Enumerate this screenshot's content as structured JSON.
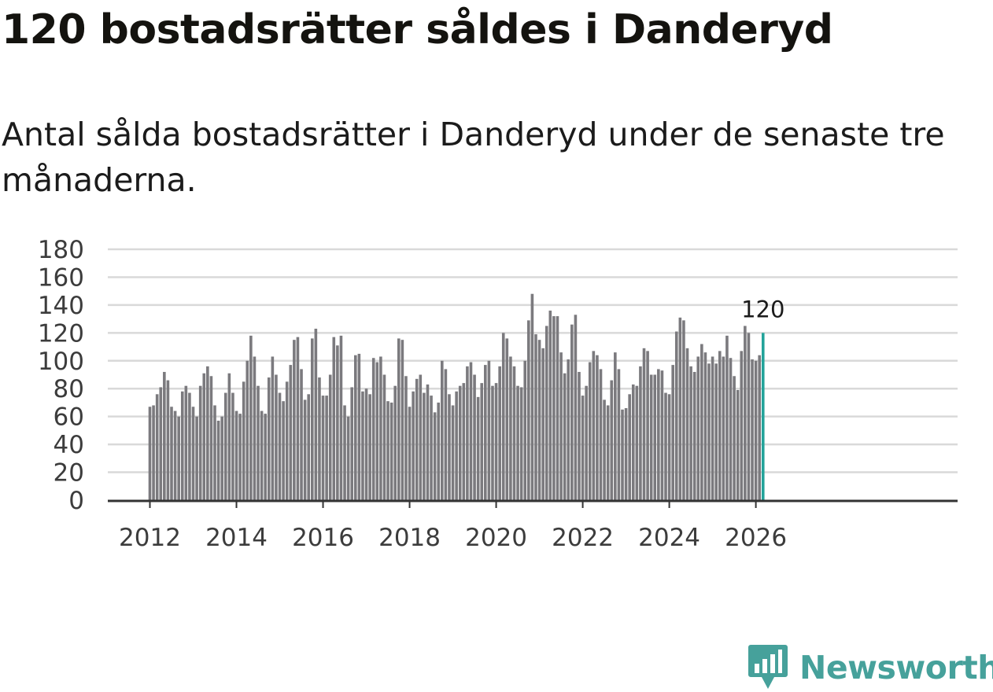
{
  "title": "120 bostadsrätter såldes i Danderyd",
  "subtitle": "Antal sålda bostadsrätter i Danderyd under de senaste tre månaderna.",
  "brand": {
    "name": "Newsworthy",
    "color": "#46a19b",
    "icon": "newsworthy-logo-icon"
  },
  "colors": {
    "bar": "#7b7a7e",
    "highlight": "#23a39a",
    "grid": "#d9d9d9",
    "axis": "#333333"
  },
  "chart_data": {
    "type": "bar",
    "title": "120 bostadsrätter såldes i Danderyd",
    "xlabel": "",
    "ylabel": "",
    "x_start": "2012-01",
    "frequency": "monthly",
    "ylim": [
      0,
      180
    ],
    "yticks": [
      "0",
      "20",
      "40",
      "60",
      "80",
      "100",
      "120",
      "140",
      "160",
      "180"
    ],
    "xticks": [
      {
        "label": "2012",
        "month_index": 0
      },
      {
        "label": "2014",
        "month_index": 24
      },
      {
        "label": "2016",
        "month_index": 48
      },
      {
        "label": "2018",
        "month_index": 72
      },
      {
        "label": "2020",
        "month_index": 96
      },
      {
        "label": "2022",
        "month_index": 120
      },
      {
        "label": "2024",
        "month_index": 144
      },
      {
        "label": "2026",
        "month_index": 168
      }
    ],
    "grid": true,
    "highlight_last": true,
    "last_label": "120",
    "series": [
      {
        "name": "Antal sålda bostadsrätter (3 mån)",
        "values": [
          67,
          68,
          76,
          81,
          92,
          86,
          67,
          64,
          60,
          78,
          82,
          77,
          67,
          60,
          82,
          91,
          96,
          89,
          68,
          57,
          60,
          77,
          91,
          77,
          64,
          62,
          85,
          100,
          118,
          103,
          82,
          64,
          62,
          88,
          103,
          90,
          77,
          71,
          85,
          97,
          115,
          117,
          94,
          72,
          76,
          116,
          123,
          88,
          75,
          75,
          90,
          117,
          111,
          118,
          68,
          60,
          81,
          104,
          105,
          78,
          80,
          76,
          102,
          99,
          103,
          90,
          71,
          70,
          82,
          116,
          115,
          89,
          67,
          78,
          87,
          90,
          77,
          83,
          75,
          63,
          70,
          100,
          94,
          76,
          68,
          78,
          82,
          84,
          96,
          99,
          90,
          74,
          84,
          97,
          100,
          82,
          84,
          96,
          120,
          116,
          103,
          96,
          82,
          81,
          100,
          129,
          148,
          119,
          115,
          109,
          125,
          136,
          132,
          132,
          106,
          91,
          101,
          126,
          133,
          92,
          75,
          82,
          99,
          107,
          104,
          94,
          72,
          68,
          86,
          106,
          94,
          65,
          66,
          76,
          83,
          82,
          96,
          109,
          107,
          90,
          90,
          94,
          93,
          77,
          76,
          97,
          121,
          131,
          129,
          109,
          96,
          92,
          103,
          112,
          106,
          98,
          103,
          98,
          107,
          103,
          118,
          102,
          89,
          79,
          107,
          125,
          120,
          101,
          100,
          104,
          120
        ]
      }
    ]
  }
}
